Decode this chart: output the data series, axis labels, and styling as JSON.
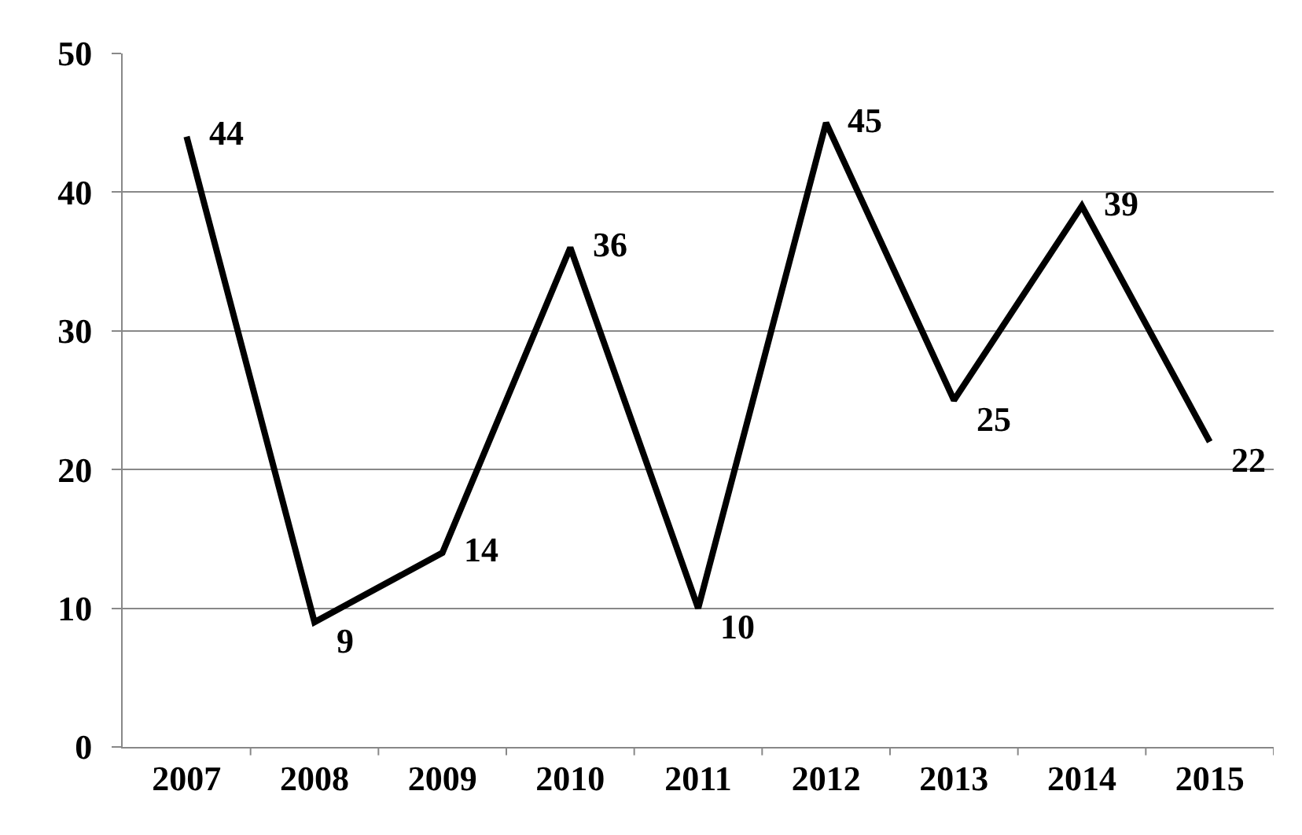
{
  "chart_data": {
    "type": "line",
    "categories": [
      "2007",
      "2008",
      "2009",
      "2010",
      "2011",
      "2012",
      "2013",
      "2014",
      "2015"
    ],
    "series": [
      {
        "color": "#000000",
        "values": [
          44,
          9,
          14,
          36,
          10,
          45,
          25,
          39,
          22
        ]
      }
    ],
    "ylim": [
      0,
      50
    ],
    "yticks": [
      0,
      10,
      20,
      30,
      40,
      50
    ],
    "grid": "y",
    "marker": "none",
    "line_style": "solid",
    "data_labels": true
  }
}
